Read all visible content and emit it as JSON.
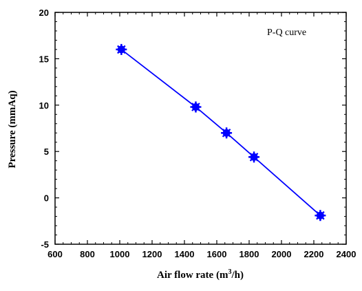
{
  "chart_data": {
    "type": "line",
    "legend": "P-Q curve",
    "legend_placement": "top-right",
    "xlabel": {
      "prefix": "Air flow rate (m",
      "sup": "3",
      "suffix": "/h)"
    },
    "ylabel": "Pressure (mmAq)",
    "xlim": [
      600,
      2400
    ],
    "ylim": [
      -5,
      20
    ],
    "xticks": [
      "600",
      "800",
      "1000",
      "1200",
      "1400",
      "1600",
      "1800",
      "2000",
      "2200",
      "2400"
    ],
    "yticks": [
      "-5",
      "0",
      "5",
      "10",
      "15",
      "20"
    ],
    "grid": false,
    "series": [
      {
        "x": [
          1010,
          1470,
          1660,
          1830,
          2240
        ],
        "y": [
          16,
          9.8,
          7,
          4.4,
          -1.9
        ],
        "color": "#0000ff"
      }
    ]
  }
}
